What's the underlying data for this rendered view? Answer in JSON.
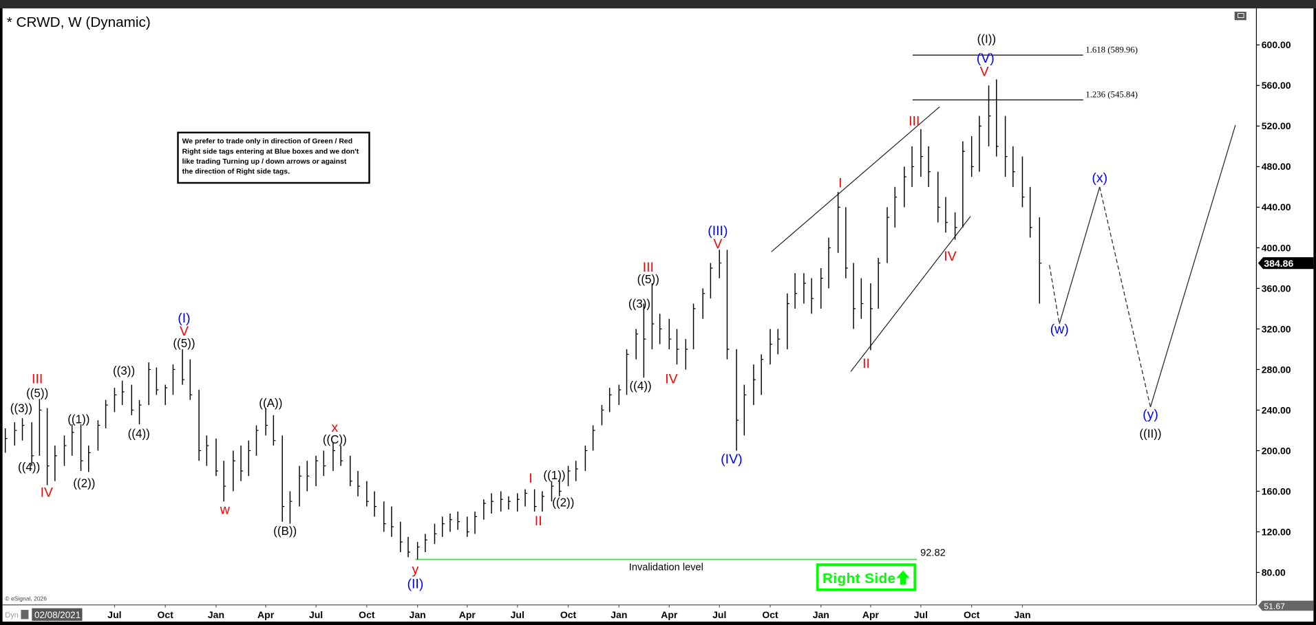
{
  "window": {
    "title": "* CRWD, W (Dynamic)",
    "restore_icon": "window-restore-icon"
  },
  "note": {
    "lines": [
      "We prefer to trade only in direction of Green / Red",
      "Right side tags entering at Blue boxes and we don't",
      "like trading Turning up / down arrows or against",
      "the direction of Right side tags."
    ]
  },
  "badge": {
    "label": "Right Side",
    "icon": "arrow-up-icon",
    "color": "#00ff00"
  },
  "footer": {
    "copyright": "© eSignal, 2026",
    "dyn": "Dyn",
    "cursor_date": "02/08/2021"
  },
  "chart_data": {
    "type": "ohlc",
    "symbol": "CRWD",
    "interval": "W",
    "ylim": [
      48,
      636
    ],
    "xlim": [
      "2020-12-10",
      "2027-03-01"
    ],
    "grid": false,
    "y_ticks": [
      "600.00",
      "560.00",
      "520.00",
      "480.00",
      "440.00",
      "400.00",
      "360.00",
      "320.00",
      "280.00",
      "240.00",
      "200.00",
      "160.00",
      "120.00",
      "80.00"
    ],
    "x_ticks": [
      {
        "label": "Jul",
        "date": "2021-07-01"
      },
      {
        "label": "Oct",
        "date": "2021-10-01"
      },
      {
        "label": "Jan",
        "date": "2022-01-01"
      },
      {
        "label": "Apr",
        "date": "2022-04-01"
      },
      {
        "label": "Jul",
        "date": "2022-07-01"
      },
      {
        "label": "Oct",
        "date": "2022-10-01"
      },
      {
        "label": "Jan",
        "date": "2023-01-01"
      },
      {
        "label": "Apr",
        "date": "2023-04-01"
      },
      {
        "label": "Jul",
        "date": "2023-07-01"
      },
      {
        "label": "Oct",
        "date": "2023-10-01"
      },
      {
        "label": "Jan",
        "date": "2024-01-01"
      },
      {
        "label": "Apr",
        "date": "2024-04-01"
      },
      {
        "label": "Jul",
        "date": "2024-07-01"
      },
      {
        "label": "Oct",
        "date": "2024-10-01"
      },
      {
        "label": "Jan",
        "date": "2025-01-01"
      },
      {
        "label": "Apr",
        "date": "2025-04-01"
      },
      {
        "label": "Jul",
        "date": "2025-07-01"
      },
      {
        "label": "Oct",
        "date": "2025-10-01"
      },
      {
        "label": "Jan",
        "date": "2026-01-01"
      }
    ],
    "last_price": "384.86",
    "scale_low": "51.67",
    "bars_columns": [
      "date",
      "high",
      "low",
      "close"
    ],
    "bars": [
      [
        "2020-12-15",
        222,
        198,
        212
      ],
      [
        "2021-01-01",
        228,
        205,
        220
      ],
      [
        "2021-01-15",
        232,
        210,
        225
      ],
      [
        "2021-02-01",
        228,
        185,
        195
      ],
      [
        "2021-02-15",
        251,
        195,
        240
      ],
      [
        "2021-03-01",
        242,
        166,
        185
      ],
      [
        "2021-03-15",
        205,
        170,
        195
      ],
      [
        "2021-04-01",
        215,
        185,
        205
      ],
      [
        "2021-04-15",
        226,
        195,
        218
      ],
      [
        "2021-05-01",
        226,
        180,
        190
      ],
      [
        "2021-05-15",
        205,
        179,
        198
      ],
      [
        "2021-06-01",
        230,
        200,
        225
      ],
      [
        "2021-06-15",
        250,
        222,
        245
      ],
      [
        "2021-07-01",
        262,
        238,
        255
      ],
      [
        "2021-07-15",
        269,
        245,
        258
      ],
      [
        "2021-08-01",
        265,
        235,
        240
      ],
      [
        "2021-08-15",
        250,
        226,
        245
      ],
      [
        "2021-09-01",
        287,
        245,
        280
      ],
      [
        "2021-09-15",
        282,
        255,
        260
      ],
      [
        "2021-10-01",
        265,
        245,
        262
      ],
      [
        "2021-10-15",
        285,
        255,
        280
      ],
      [
        "2021-11-01",
        300,
        265,
        270
      ],
      [
        "2021-11-15",
        290,
        250,
        255
      ],
      [
        "2021-12-01",
        260,
        190,
        200
      ],
      [
        "2021-12-15",
        215,
        185,
        205
      ],
      [
        "2022-01-01",
        212,
        175,
        180
      ],
      [
        "2022-01-15",
        190,
        150,
        165
      ],
      [
        "2022-02-01",
        200,
        160,
        190
      ],
      [
        "2022-02-15",
        205,
        170,
        180
      ],
      [
        "2022-03-01",
        210,
        175,
        200
      ],
      [
        "2022-03-15",
        225,
        195,
        220
      ],
      [
        "2022-04-01",
        242,
        215,
        225
      ],
      [
        "2022-04-15",
        235,
        205,
        210
      ],
      [
        "2022-05-01",
        215,
        130,
        145
      ],
      [
        "2022-05-15",
        160,
        128,
        150
      ],
      [
        "2022-06-01",
        185,
        145,
        175
      ],
      [
        "2022-06-15",
        190,
        160,
        175
      ],
      [
        "2022-07-01",
        195,
        165,
        190
      ],
      [
        "2022-07-15",
        200,
        175,
        185
      ],
      [
        "2022-08-01",
        208,
        180,
        200
      ],
      [
        "2022-08-15",
        205,
        185,
        190
      ],
      [
        "2022-09-01",
        195,
        165,
        170
      ],
      [
        "2022-09-15",
        180,
        155,
        165
      ],
      [
        "2022-10-01",
        170,
        145,
        150
      ],
      [
        "2022-10-15",
        160,
        135,
        145
      ],
      [
        "2022-11-01",
        150,
        120,
        128
      ],
      [
        "2022-11-15",
        145,
        115,
        125
      ],
      [
        "2022-12-01",
        130,
        100,
        110
      ],
      [
        "2022-12-15",
        115,
        95,
        100
      ],
      [
        "2023-01-01",
        110,
        92.82,
        105
      ],
      [
        "2023-01-15",
        118,
        100,
        112
      ],
      [
        "2023-02-01",
        128,
        108,
        118
      ],
      [
        "2023-02-15",
        135,
        115,
        128
      ],
      [
        "2023-03-01",
        138,
        120,
        132
      ],
      [
        "2023-03-15",
        140,
        122,
        130
      ],
      [
        "2023-04-01",
        135,
        115,
        120
      ],
      [
        "2023-04-15",
        140,
        118,
        135
      ],
      [
        "2023-05-01",
        152,
        132,
        148
      ],
      [
        "2023-05-15",
        158,
        138,
        150
      ],
      [
        "2023-06-01",
        160,
        140,
        152
      ],
      [
        "2023-06-15",
        155,
        142,
        150
      ],
      [
        "2023-07-01",
        158,
        140,
        152
      ],
      [
        "2023-07-15",
        162,
        145,
        158
      ],
      [
        "2023-08-01",
        162,
        140,
        145
      ],
      [
        "2023-08-15",
        160,
        140,
        155
      ],
      [
        "2023-09-01",
        170,
        150,
        165
      ],
      [
        "2023-09-15",
        172,
        155,
        160
      ],
      [
        "2023-10-01",
        185,
        165,
        180
      ],
      [
        "2023-10-15",
        190,
        170,
        182
      ],
      [
        "2023-11-01",
        205,
        180,
        200
      ],
      [
        "2023-11-15",
        225,
        200,
        220
      ],
      [
        "2023-12-01",
        245,
        225,
        240
      ],
      [
        "2023-12-15",
        262,
        238,
        255
      ],
      [
        "2024-01-01",
        265,
        245,
        260
      ],
      [
        "2024-01-15",
        300,
        255,
        295
      ],
      [
        "2024-02-01",
        320,
        290,
        315
      ],
      [
        "2024-02-15",
        345,
        272,
        310
      ],
      [
        "2024-03-01",
        365,
        300,
        325
      ],
      [
        "2024-03-15",
        335,
        305,
        320
      ],
      [
        "2024-04-01",
        330,
        300,
        310
      ],
      [
        "2024-04-15",
        320,
        285,
        300
      ],
      [
        "2024-05-01",
        310,
        280,
        300
      ],
      [
        "2024-05-15",
        345,
        300,
        340
      ],
      [
        "2024-06-01",
        360,
        330,
        355
      ],
      [
        "2024-06-15",
        385,
        350,
        380
      ],
      [
        "2024-07-01",
        398,
        370,
        385
      ],
      [
        "2024-07-15",
        398,
        290,
        300
      ],
      [
        "2024-08-01",
        300,
        200,
        230
      ],
      [
        "2024-08-15",
        265,
        215,
        255
      ],
      [
        "2024-09-01",
        285,
        245,
        270
      ],
      [
        "2024-09-15",
        295,
        255,
        290
      ],
      [
        "2024-10-01",
        320,
        285,
        305
      ],
      [
        "2024-10-15",
        320,
        295,
        310
      ],
      [
        "2024-11-01",
        355,
        300,
        345
      ],
      [
        "2024-11-15",
        375,
        340,
        355
      ],
      [
        "2024-12-01",
        375,
        345,
        365
      ],
      [
        "2024-12-15",
        370,
        335,
        350
      ],
      [
        "2025-01-01",
        380,
        340,
        370
      ],
      [
        "2025-01-15",
        410,
        360,
        400
      ],
      [
        "2025-02-01",
        455,
        395,
        440
      ],
      [
        "2025-02-15",
        440,
        370,
        380
      ],
      [
        "2025-03-01",
        385,
        320,
        340
      ],
      [
        "2025-03-15",
        370,
        330,
        345
      ],
      [
        "2025-04-01",
        365,
        299,
        340
      ],
      [
        "2025-04-15",
        390,
        340,
        385
      ],
      [
        "2025-05-01",
        440,
        385,
        430
      ],
      [
        "2025-05-15",
        460,
        420,
        450
      ],
      [
        "2025-06-01",
        480,
        440,
        470
      ],
      [
        "2025-06-15",
        500,
        460,
        480
      ],
      [
        "2025-07-01",
        517,
        470,
        490
      ],
      [
        "2025-07-15",
        500,
        460,
        475
      ],
      [
        "2025-08-01",
        475,
        425,
        440
      ],
      [
        "2025-08-15",
        450,
        415,
        425
      ],
      [
        "2025-09-01",
        435,
        408,
        420
      ],
      [
        "2025-09-15",
        505,
        420,
        495
      ],
      [
        "2025-10-01",
        510,
        470,
        480
      ],
      [
        "2025-10-15",
        530,
        475,
        520
      ],
      [
        "2025-11-01",
        560,
        500,
        530
      ],
      [
        "2025-11-15",
        566,
        490,
        500
      ],
      [
        "2025-12-01",
        530,
        470,
        490
      ],
      [
        "2025-12-15",
        500,
        460,
        475
      ],
      [
        "2026-01-01",
        490,
        440,
        450
      ],
      [
        "2026-01-15",
        460,
        410,
        420
      ],
      [
        "2026-02-01",
        430,
        345,
        384.86
      ]
    ],
    "wave_labels": [
      {
        "text": "((3))",
        "color": "#000000",
        "date": "2021-01-13",
        "price": 241
      },
      {
        "text": "((4))",
        "color": "#000000",
        "date": "2021-01-27",
        "price": 183
      },
      {
        "text": "((5))",
        "color": "#000000",
        "date": "2021-02-11",
        "price": 256
      },
      {
        "text": "III",
        "color": "#ff0000",
        "date": "2021-02-11",
        "price": 270
      },
      {
        "text": "IV",
        "color": "#ff0000",
        "date": "2021-02-28",
        "price": 158
      },
      {
        "text": "((1))",
        "color": "#000000",
        "date": "2021-04-27",
        "price": 230
      },
      {
        "text": "((2))",
        "color": "#000000",
        "date": "2021-05-07",
        "price": 167
      },
      {
        "text": "((3))",
        "color": "#000000",
        "date": "2021-07-18",
        "price": 278
      },
      {
        "text": "((4))",
        "color": "#000000",
        "date": "2021-08-14",
        "price": 216
      },
      {
        "text": "((5))",
        "color": "#000000",
        "date": "2021-11-04",
        "price": 305
      },
      {
        "text": "V",
        "color": "#ff0000",
        "date": "2021-11-04",
        "price": 317
      },
      {
        "text": "(I)",
        "color": "#0000ff",
        "date": "2021-11-04",
        "price": 330
      },
      {
        "text": "w",
        "color": "#ff0000",
        "date": "2022-01-17",
        "price": 141
      },
      {
        "text": "((A))",
        "color": "#000000",
        "date": "2022-04-10",
        "price": 246
      },
      {
        "text": "((B))",
        "color": "#000000",
        "date": "2022-05-06",
        "price": 120
      },
      {
        "text": "((C))",
        "color": "#000000",
        "date": "2022-08-04",
        "price": 210
      },
      {
        "text": "x",
        "color": "#ff0000",
        "date": "2022-08-04",
        "price": 222
      },
      {
        "text": "y",
        "color": "#ff0000",
        "date": "2022-12-28",
        "price": 82
      },
      {
        "text": "(II)",
        "color": "#0000ff",
        "date": "2022-12-28",
        "price": 68
      },
      {
        "text": "I",
        "color": "#ff0000",
        "date": "2023-07-25",
        "price": 172
      },
      {
        "text": "II",
        "color": "#ff0000",
        "date": "2023-08-08",
        "price": 130
      },
      {
        "text": "((1))",
        "color": "#000000",
        "date": "2023-09-06",
        "price": 175
      },
      {
        "text": "((2))",
        "color": "#000000",
        "date": "2023-09-22",
        "price": 148
      },
      {
        "text": "((3))",
        "color": "#000000",
        "date": "2024-02-07",
        "price": 344
      },
      {
        "text": "((4))",
        "color": "#000000",
        "date": "2024-02-09",
        "price": 263
      },
      {
        "text": "((5))",
        "color": "#000000",
        "date": "2024-02-23",
        "price": 368
      },
      {
        "text": "III",
        "color": "#ff0000",
        "date": "2024-02-23",
        "price": 380
      },
      {
        "text": "IV",
        "color": "#ff0000",
        "date": "2024-04-05",
        "price": 270
      },
      {
        "text": "(III)",
        "color": "#0000ff",
        "date": "2024-06-28",
        "price": 416
      },
      {
        "text": "V",
        "color": "#ff0000",
        "date": "2024-06-28",
        "price": 403
      },
      {
        "text": "(IV)",
        "color": "#0000ff",
        "date": "2024-07-23",
        "price": 191
      },
      {
        "text": "I",
        "color": "#ff0000",
        "date": "2025-02-05",
        "price": 463
      },
      {
        "text": "II",
        "color": "#ff0000",
        "date": "2025-03-24",
        "price": 285
      },
      {
        "text": "III",
        "color": "#ff0000",
        "date": "2025-06-19",
        "price": 524
      },
      {
        "text": "IV",
        "color": "#ff0000",
        "date": "2025-08-23",
        "price": 391
      },
      {
        "text": "V",
        "color": "#ff0000",
        "date": "2025-10-24",
        "price": 573
      },
      {
        "text": "(V)",
        "color": "#0000ff",
        "date": "2025-10-26",
        "price": 586
      },
      {
        "text": "((I))",
        "color": "#000000",
        "date": "2025-10-28",
        "price": 605
      },
      {
        "text": "(w)",
        "color": "#0000ff",
        "date": "2026-03-09",
        "price": 319
      },
      {
        "text": "(x)",
        "color": "#0000ff",
        "date": "2026-05-21",
        "price": 468
      },
      {
        "text": "(y)",
        "color": "#0000ff",
        "date": "2026-08-21",
        "price": 235
      },
      {
        "text": "((II))",
        "color": "#000000",
        "date": "2026-08-21",
        "price": 216
      }
    ],
    "fib_levels": [
      {
        "label": "1.618 (589.96)",
        "value": 589.96,
        "from": "2025-06-16",
        "to": "2026-04-21"
      },
      {
        "label": "1.236 (545.84)",
        "value": 545.84,
        "from": "2025-06-16",
        "to": "2026-04-21"
      }
    ],
    "channel_lines": [
      {
        "from": {
          "date": "2024-10-03",
          "price": 396
        },
        "to": {
          "date": "2025-08-04",
          "price": 539
        }
      },
      {
        "from": {
          "date": "2025-02-24",
          "price": 278
        },
        "to": {
          "date": "2025-09-29",
          "price": 431
        }
      }
    ],
    "invalidation": {
      "value": "92.82",
      "label": "Invalidation level",
      "from": "2022-12-28",
      "to": "2025-06-24",
      "color": "#00ff00"
    },
    "projection": [
      {
        "date": "2026-02-19",
        "price": 383,
        "style": "start"
      },
      {
        "date": "2026-03-09",
        "price": 325,
        "style": "dashed"
      },
      {
        "date": "2026-05-21",
        "price": 460,
        "style": "solid"
      },
      {
        "date": "2026-08-21",
        "price": 243,
        "style": "dashed"
      },
      {
        "date": "2027-01-22",
        "price": 521,
        "style": "solid"
      }
    ]
  }
}
